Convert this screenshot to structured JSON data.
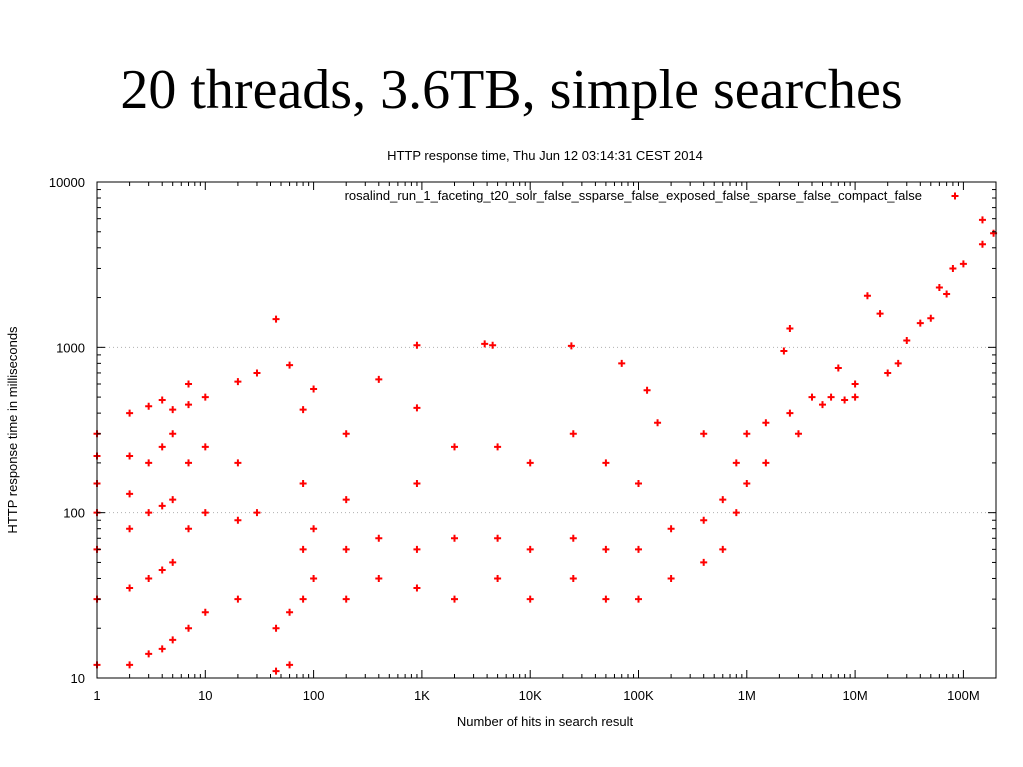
{
  "slide": {
    "title": "20 threads, 3.6TB, simple searches"
  },
  "chart_data": {
    "type": "scatter",
    "title": "HTTP response time, Thu Jun 12 03:14:31 CEST 2014",
    "xlabel": "Number of hits in search result",
    "ylabel": "HTTP response time in milliseconds",
    "x_scale": "log",
    "y_scale": "log",
    "xlim": [
      1,
      200000000
    ],
    "ylim": [
      10,
      10000
    ],
    "x_ticks": [
      {
        "value": 1,
        "label": "1"
      },
      {
        "value": 10,
        "label": "10"
      },
      {
        "value": 100,
        "label": "100"
      },
      {
        "value": 1000,
        "label": "1K"
      },
      {
        "value": 10000,
        "label": "10K"
      },
      {
        "value": 100000,
        "label": "100K"
      },
      {
        "value": 1000000,
        "label": "1M"
      },
      {
        "value": 10000000,
        "label": "10M"
      },
      {
        "value": 100000000,
        "label": "100M"
      }
    ],
    "y_ticks": [
      {
        "value": 10,
        "label": "10"
      },
      {
        "value": 100,
        "label": "100"
      },
      {
        "value": 1000,
        "label": "1000"
      },
      {
        "value": 10000,
        "label": "10000"
      }
    ],
    "grid": "horizontal dotted at major y ticks",
    "legend_position": "top-right",
    "marker": "plus",
    "series": [
      {
        "name": "rosalind_run_1_faceting_t20_solr_false_ssparse_false_exposed_false_sparse_false_compact_false",
        "color": "#ff0000",
        "points": [
          [
            1,
            12
          ],
          [
            1,
            30
          ],
          [
            1,
            60
          ],
          [
            1,
            100
          ],
          [
            1,
            150
          ],
          [
            1,
            220
          ],
          [
            1,
            300
          ],
          [
            2,
            12
          ],
          [
            2,
            35
          ],
          [
            2,
            80
          ],
          [
            2,
            130
          ],
          [
            2,
            220
          ],
          [
            2,
            400
          ],
          [
            3,
            14
          ],
          [
            3,
            40
          ],
          [
            3,
            100
          ],
          [
            3,
            200
          ],
          [
            3,
            440
          ],
          [
            4,
            15
          ],
          [
            4,
            45
          ],
          [
            4,
            110
          ],
          [
            4,
            250
          ],
          [
            4,
            480
          ],
          [
            5,
            17
          ],
          [
            5,
            50
          ],
          [
            5,
            120
          ],
          [
            5,
            300
          ],
          [
            5,
            420
          ],
          [
            7,
            20
          ],
          [
            7,
            80
          ],
          [
            7,
            200
          ],
          [
            7,
            450
          ],
          [
            7,
            600
          ],
          [
            10,
            25
          ],
          [
            10,
            100
          ],
          [
            10,
            250
          ],
          [
            10,
            500
          ],
          [
            20,
            30
          ],
          [
            20,
            90
          ],
          [
            20,
            200
          ],
          [
            20,
            620
          ],
          [
            30,
            100
          ],
          [
            30,
            700
          ],
          [
            45,
            1480
          ],
          [
            45,
            11
          ],
          [
            45,
            20
          ],
          [
            60,
            780
          ],
          [
            60,
            12
          ],
          [
            60,
            25
          ],
          [
            80,
            420
          ],
          [
            80,
            30
          ],
          [
            80,
            60
          ],
          [
            80,
            150
          ],
          [
            100,
            560
          ],
          [
            100,
            40
          ],
          [
            100,
            80
          ],
          [
            200,
            300
          ],
          [
            200,
            30
          ],
          [
            200,
            60
          ],
          [
            200,
            120
          ],
          [
            400,
            640
          ],
          [
            400,
            40
          ],
          [
            400,
            70
          ],
          [
            900,
            1030
          ],
          [
            900,
            35
          ],
          [
            900,
            60
          ],
          [
            900,
            150
          ],
          [
            900,
            430
          ],
          [
            2000,
            250
          ],
          [
            2000,
            30
          ],
          [
            2000,
            70
          ],
          [
            3800,
            1050
          ],
          [
            4500,
            1030
          ],
          [
            5000,
            250
          ],
          [
            5000,
            40
          ],
          [
            5000,
            70
          ],
          [
            10000,
            200
          ],
          [
            10000,
            30
          ],
          [
            10000,
            60
          ],
          [
            24000,
            1020
          ],
          [
            25000,
            300
          ],
          [
            25000,
            40
          ],
          [
            25000,
            70
          ],
          [
            50000,
            200
          ],
          [
            50000,
            30
          ],
          [
            50000,
            60
          ],
          [
            70000,
            800
          ],
          [
            100000,
            150
          ],
          [
            100000,
            30
          ],
          [
            100000,
            60
          ],
          [
            120000,
            550
          ],
          [
            150000,
            350
          ],
          [
            200000,
            40
          ],
          [
            200000,
            80
          ],
          [
            400000,
            50
          ],
          [
            400000,
            90
          ],
          [
            400000,
            300
          ],
          [
            600000,
            60
          ],
          [
            600000,
            120
          ],
          [
            800000,
            100
          ],
          [
            800000,
            200
          ],
          [
            1000000,
            150
          ],
          [
            1000000,
            300
          ],
          [
            1500000,
            200
          ],
          [
            1500000,
            350
          ],
          [
            2500000,
            1300
          ],
          [
            2500000,
            400
          ],
          [
            2200000,
            950
          ],
          [
            3000000,
            300
          ],
          [
            4000000,
            500
          ],
          [
            5000000,
            450
          ],
          [
            6000000,
            500
          ],
          [
            7000000,
            750
          ],
          [
            8000000,
            480
          ],
          [
            10000000,
            500
          ],
          [
            10000000,
            600
          ],
          [
            13000000,
            2050
          ],
          [
            17000000,
            1600
          ],
          [
            20000000,
            700
          ],
          [
            25000000,
            800
          ],
          [
            30000000,
            1100
          ],
          [
            40000000,
            1400
          ],
          [
            50000000,
            1500
          ],
          [
            60000000,
            2300
          ],
          [
            70000000,
            2100
          ],
          [
            80000000,
            3000
          ],
          [
            100000000,
            3200
          ],
          [
            150000000,
            4200
          ],
          [
            150000000,
            5900
          ],
          [
            190000000,
            4900
          ]
        ]
      }
    ]
  }
}
